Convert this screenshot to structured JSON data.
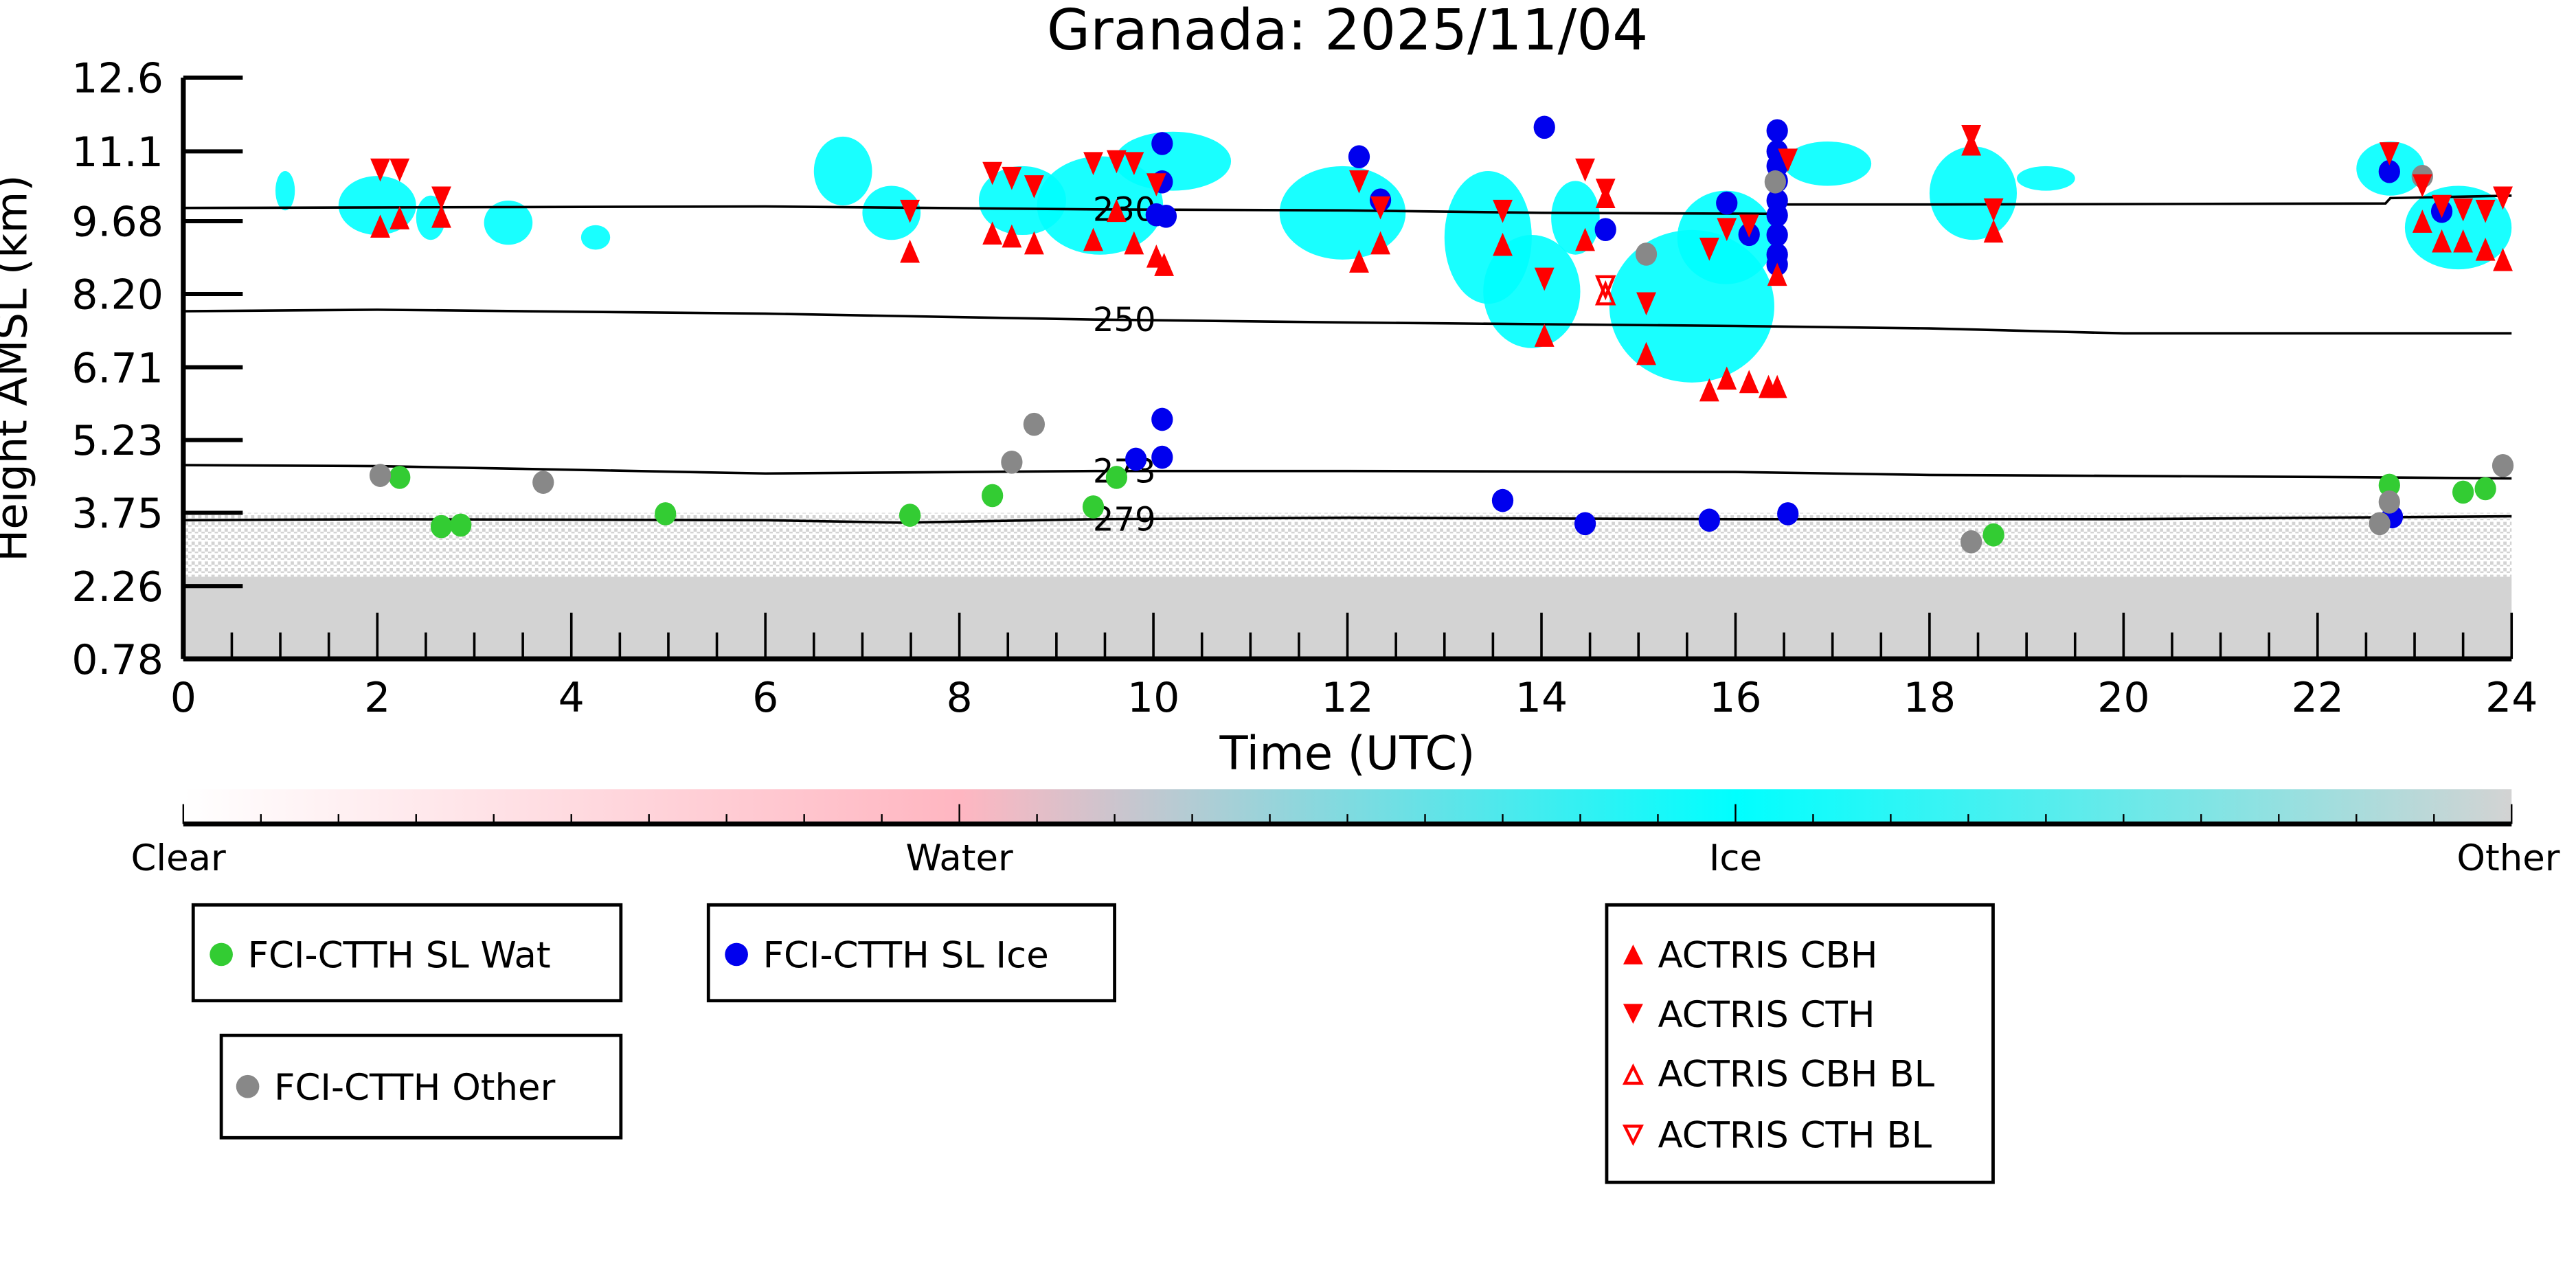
{
  "chart_data": {
    "type": "scatter",
    "title": "Granada: 2025/11/04",
    "xlabel": "Time (UTC)",
    "ylabel": "Height AMSL (km)",
    "xlim": [
      0,
      24
    ],
    "ylim": [
      0.78,
      12.6
    ],
    "xticks": [
      "0",
      "2",
      "4",
      "6",
      "8",
      "10",
      "12",
      "14",
      "16",
      "18",
      "20",
      "22",
      "24"
    ],
    "yticks": [
      "0.78",
      "2.26",
      "3.75",
      "5.23",
      "6.71",
      "8.20",
      "9.68",
      "11.1",
      "12.6"
    ],
    "ytick_values": [
      0.78,
      2.26,
      3.75,
      5.23,
      6.71,
      8.2,
      9.68,
      11.1,
      12.6
    ],
    "colorbar": {
      "labels": [
        "Clear",
        "Water",
        "Ice",
        "Other"
      ],
      "colors": [
        "#ffffff",
        "#ffb6c1",
        "#00ffff",
        "#d3d3d3"
      ]
    },
    "colors": {
      "water": "#33cc33",
      "ice": "#0000ee",
      "other": "#888888",
      "actris": "#ff0000",
      "cloud_ice": "#00ffff",
      "cloud_other": "#d3d3d3"
    },
    "contours": [
      {
        "label": "230",
        "points": [
          [
            0,
            9.95
          ],
          [
            6,
            9.98
          ],
          [
            9.4,
            9.92
          ],
          [
            12,
            9.9
          ],
          [
            14,
            9.85
          ],
          [
            16.4,
            9.83
          ],
          [
            16.45,
            10.02
          ],
          [
            18,
            10.02
          ],
          [
            22.7,
            10.04
          ],
          [
            22.75,
            10.15
          ],
          [
            24,
            10.2
          ]
        ]
      },
      {
        "label": "250",
        "points": [
          [
            0,
            7.85
          ],
          [
            2,
            7.88
          ],
          [
            6,
            7.8
          ],
          [
            9.4,
            7.68
          ],
          [
            12,
            7.62
          ],
          [
            16,
            7.55
          ],
          [
            18,
            7.5
          ],
          [
            20,
            7.4
          ],
          [
            24,
            7.4
          ]
        ]
      },
      {
        "label": "273",
        "points": [
          [
            0,
            4.72
          ],
          [
            2,
            4.7
          ],
          [
            6,
            4.55
          ],
          [
            9.4,
            4.6
          ],
          [
            12,
            4.6
          ],
          [
            16,
            4.58
          ],
          [
            18,
            4.52
          ],
          [
            22,
            4.48
          ],
          [
            24,
            4.45
          ]
        ]
      },
      {
        "label": "279",
        "points": [
          [
            0,
            3.6
          ],
          [
            2,
            3.62
          ],
          [
            6,
            3.6
          ],
          [
            7.4,
            3.55
          ],
          [
            9.4,
            3.62
          ],
          [
            12,
            3.65
          ],
          [
            16,
            3.62
          ],
          [
            20,
            3.62
          ],
          [
            24,
            3.68
          ]
        ]
      }
    ],
    "cloud_ice_regions": [
      [
        0.95,
        1.15,
        9.9,
        10.7
      ],
      [
        1.6,
        2.4,
        9.4,
        10.6
      ],
      [
        2.4,
        2.7,
        9.3,
        10.2
      ],
      [
        3.1,
        3.6,
        9.2,
        10.1
      ],
      [
        4.1,
        4.4,
        9.1,
        9.6
      ],
      [
        6.5,
        7.1,
        10.0,
        11.4
      ],
      [
        7.0,
        7.6,
        9.3,
        10.4
      ],
      [
        8.2,
        9.1,
        9.4,
        10.8
      ],
      [
        8.8,
        10.1,
        9.0,
        11.0
      ],
      [
        9.6,
        10.8,
        10.3,
        11.5
      ],
      [
        11.3,
        12.6,
        8.9,
        10.8
      ],
      [
        13.0,
        13.9,
        8.0,
        10.7
      ],
      [
        13.4,
        14.4,
        7.1,
        9.4
      ],
      [
        14.1,
        14.6,
        9.0,
        10.5
      ],
      [
        14.7,
        16.4,
        6.4,
        9.5
      ],
      [
        15.4,
        16.4,
        8.4,
        10.3
      ],
      [
        16.5,
        17.4,
        10.4,
        11.3
      ],
      [
        18.0,
        18.9,
        9.3,
        11.2
      ],
      [
        18.9,
        19.5,
        10.3,
        10.8
      ],
      [
        22.4,
        23.1,
        10.2,
        11.3
      ],
      [
        22.9,
        24,
        8.7,
        10.4
      ]
    ],
    "cloud_other_solid_top": 2.45,
    "cloud_other_speckle_top": 3.75,
    "series": [
      {
        "name": "FCI-CTTH SL Wat",
        "marker": "circle",
        "color": "#33cc33",
        "points": [
          [
            2.23,
            4.47
          ],
          [
            2.66,
            3.47
          ],
          [
            2.86,
            3.5
          ],
          [
            4.97,
            3.73
          ],
          [
            7.49,
            3.7
          ],
          [
            8.34,
            4.1
          ],
          [
            9.38,
            3.87
          ],
          [
            9.62,
            4.47
          ],
          [
            18.66,
            3.3
          ],
          [
            22.74,
            4.31
          ],
          [
            23.5,
            4.17
          ],
          [
            23.73,
            4.24
          ]
        ]
      },
      {
        "name": "FCI-CTTH SL Ice",
        "marker": "circle",
        "color": "#0000ee",
        "points": [
          [
            10.09,
            11.26
          ],
          [
            10.09,
            10.48
          ],
          [
            10.03,
            9.81
          ],
          [
            10.13,
            9.78
          ],
          [
            9.82,
            4.84
          ],
          [
            10.09,
            4.88
          ],
          [
            10.09,
            5.65
          ],
          [
            12.12,
            10.99
          ],
          [
            12.34,
            10.11
          ],
          [
            14.03,
            11.59
          ],
          [
            14.66,
            9.51
          ],
          [
            13.6,
            4.0
          ],
          [
            14.45,
            3.53
          ],
          [
            15.91,
            10.05
          ],
          [
            15.73,
            3.6
          ],
          [
            16.14,
            9.41
          ],
          [
            16.43,
            11.52
          ],
          [
            16.43,
            11.1
          ],
          [
            16.43,
            10.8
          ],
          [
            16.43,
            10.5
          ],
          [
            16.43,
            10.1
          ],
          [
            16.43,
            9.8
          ],
          [
            16.43,
            9.4
          ],
          [
            16.43,
            9.0
          ],
          [
            16.43,
            8.8
          ],
          [
            16.54,
            3.73
          ],
          [
            22.74,
            10.69
          ],
          [
            23.28,
            9.88
          ],
          [
            22.77,
            3.67
          ]
        ]
      },
      {
        "name": "FCI-CTTH Other",
        "marker": "circle",
        "color": "#888888",
        "points": [
          [
            2.03,
            4.51
          ],
          [
            3.71,
            4.37
          ],
          [
            8.54,
            4.78
          ],
          [
            8.77,
            5.55
          ],
          [
            15.08,
            9.01
          ],
          [
            16.41,
            10.48
          ],
          [
            18.43,
            3.16
          ],
          [
            22.64,
            3.53
          ],
          [
            22.74,
            3.97
          ],
          [
            23.08,
            10.59
          ],
          [
            23.91,
            4.71
          ]
        ]
      },
      {
        "name": "ACTRIS CBH",
        "marker": "triangle-up",
        "color": "#ff0000",
        "points": [
          [
            2.03,
            9.58
          ],
          [
            2.23,
            9.75
          ],
          [
            2.66,
            9.78
          ],
          [
            7.49,
            9.07
          ],
          [
            8.34,
            9.44
          ],
          [
            8.54,
            9.38
          ],
          [
            8.77,
            9.24
          ],
          [
            9.38,
            9.31
          ],
          [
            9.62,
            9.9
          ],
          [
            9.8,
            9.24
          ],
          [
            10.03,
            8.97
          ],
          [
            10.11,
            8.8
          ],
          [
            12.12,
            8.87
          ],
          [
            12.34,
            9.24
          ],
          [
            13.6,
            9.21
          ],
          [
            14.03,
            7.36
          ],
          [
            14.45,
            9.31
          ],
          [
            14.66,
            10.18
          ],
          [
            15.08,
            6.99
          ],
          [
            15.73,
            6.25
          ],
          [
            15.91,
            6.49
          ],
          [
            16.14,
            6.42
          ],
          [
            16.34,
            6.32
          ],
          [
            16.43,
            6.32
          ],
          [
            16.43,
            8.6
          ],
          [
            18.43,
            11.25
          ],
          [
            18.66,
            9.48
          ],
          [
            23.08,
            9.68
          ],
          [
            23.28,
            9.28
          ],
          [
            23.5,
            9.28
          ],
          [
            23.73,
            9.11
          ],
          [
            23.91,
            8.9
          ]
        ]
      },
      {
        "name": "ACTRIS CTH",
        "marker": "triangle-down",
        "color": "#ff0000",
        "points": [
          [
            2.03,
            10.72
          ],
          [
            2.23,
            10.72
          ],
          [
            2.66,
            10.15
          ],
          [
            7.49,
            9.88
          ],
          [
            8.34,
            10.65
          ],
          [
            8.54,
            10.55
          ],
          [
            8.77,
            10.38
          ],
          [
            9.38,
            10.85
          ],
          [
            9.62,
            10.89
          ],
          [
            9.8,
            10.85
          ],
          [
            10.03,
            10.42
          ],
          [
            12.12,
            10.48
          ],
          [
            12.34,
            9.95
          ],
          [
            13.6,
            9.88
          ],
          [
            14.03,
            8.5
          ],
          [
            14.45,
            10.72
          ],
          [
            14.66,
            10.31
          ],
          [
            15.08,
            8.0
          ],
          [
            15.73,
            9.11
          ],
          [
            15.91,
            9.51
          ],
          [
            16.14,
            9.58
          ],
          [
            16.54,
            10.92
          ],
          [
            18.43,
            11.4
          ],
          [
            18.66,
            9.91
          ],
          [
            22.74,
            11.05
          ],
          [
            23.08,
            10.4
          ],
          [
            23.28,
            9.98
          ],
          [
            23.5,
            9.91
          ],
          [
            23.73,
            9.88
          ],
          [
            23.91,
            10.15
          ]
        ]
      },
      {
        "name": "ACTRIS CBH BL",
        "marker": "triangle-up-open",
        "color": "#ff0000",
        "points": [
          [
            14.66,
            8.2
          ]
        ]
      },
      {
        "name": "ACTRIS CTH BL",
        "marker": "triangle-down-open",
        "color": "#ff0000",
        "points": [
          [
            14.66,
            8.35
          ]
        ]
      }
    ],
    "legend": {
      "wat": "FCI-CTTH SL Wat",
      "ice": "FCI-CTTH SL Ice",
      "other": "FCI-CTTH Other",
      "cbh": "ACTRIS CBH",
      "cth": "ACTRIS CTH",
      "cbh_bl": "ACTRIS CBH BL",
      "cth_bl": "ACTRIS CTH BL"
    }
  }
}
